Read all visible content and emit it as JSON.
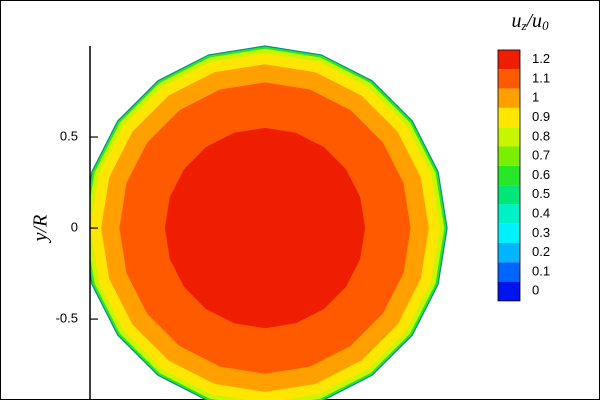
{
  "chart_data": {
    "type": "contour",
    "y_label": "y/R",
    "colorbar_title": [
      "u",
      "z",
      "/u",
      "0"
    ],
    "ylim": [
      -0.95,
      1.0
    ],
    "yticks": [
      -0.5,
      0,
      0.5
    ],
    "levels": [
      1.2,
      1.1,
      1,
      0.9,
      0.8,
      0.7,
      0.6,
      0.5,
      0.4,
      0.3,
      0.2,
      0.1,
      0
    ],
    "colors": [
      "#f01e00",
      "#ff5a00",
      "#ffa000",
      "#ffe600",
      "#c8f500",
      "#78f000",
      "#28e628",
      "#00e678",
      "#00f0c8",
      "#00f0ff",
      "#00b4ff",
      "#0064ff",
      "#0014f0"
    ],
    "regions": [
      {
        "level": 0.6,
        "radius": 1.0
      },
      {
        "level": 0.8,
        "radius": 0.985
      },
      {
        "level": 0.9,
        "radius": 0.96
      },
      {
        "level": 1,
        "radius": 0.9
      },
      {
        "level": 1.1,
        "radius": 0.8
      },
      {
        "level": 1.2,
        "radius": 0.55
      }
    ]
  }
}
